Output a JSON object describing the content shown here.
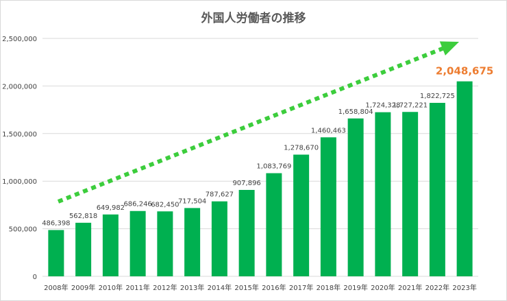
{
  "chart_data": {
    "type": "bar",
    "title": "外国人労働者の推移",
    "categories": [
      "2008年",
      "2009年",
      "2010年",
      "2011年",
      "2012年",
      "2013年",
      "2014年",
      "2015年",
      "2016年",
      "2017年",
      "2018年",
      "2019年",
      "2020年",
      "2021年",
      "2022年",
      "2023年"
    ],
    "values": [
      486398,
      562818,
      649982,
      686246,
      682450,
      717504,
      787627,
      907896,
      1083769,
      1278670,
      1460463,
      1658804,
      1724328,
      1727221,
      1822725,
      2048675
    ],
    "value_labels": [
      "486,398",
      "562,818",
      "649,982",
      "686,246",
      "682,450",
      "717,504",
      "787,627",
      "907,896",
      "1,083,769",
      "1,278,670",
      "1,460,463",
      "1,658,804",
      "1,724,328",
      "1,727,221",
      "1,822,725",
      "2,048,675"
    ],
    "highlight_index": 15,
    "ylim": [
      0,
      2500000
    ],
    "yticks": [
      0,
      500000,
      1000000,
      1500000,
      2000000,
      2500000
    ],
    "ytick_labels": [
      "0",
      "500,000",
      "1,000,000",
      "1,500,000",
      "2,000,000",
      "2,500,000"
    ],
    "grid": true,
    "legend": "none",
    "annotation": "dotted-trend-arrow",
    "colors": {
      "bar": "#00b050",
      "arrow": "#3ccd3c",
      "highlight_label": "#ed7d31",
      "grid": "#d9d9d9",
      "axis_text": "#404040",
      "title": "#595959"
    }
  }
}
